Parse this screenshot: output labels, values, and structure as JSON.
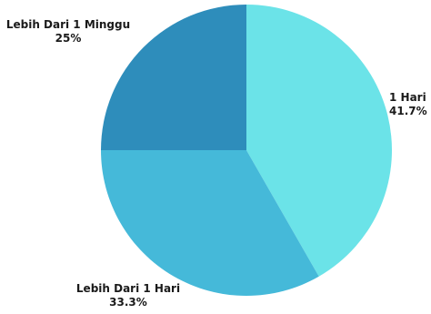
{
  "chart_data": {
    "type": "pie",
    "title": "",
    "start_angle_deg": 90,
    "direction": "clockwise",
    "slices": [
      {
        "label": "1 Hari",
        "value": 41.7,
        "display": "41.7%",
        "color": "#6be3e8"
      },
      {
        "label": "Lebih Dari 1 Hari",
        "value": 33.3,
        "display": "33.3%",
        "color": "#45b9d9"
      },
      {
        "label": "Lebih Dari 1 Minggu",
        "value": 25,
        "display": "25%",
        "color": "#2e8dbb"
      }
    ]
  }
}
